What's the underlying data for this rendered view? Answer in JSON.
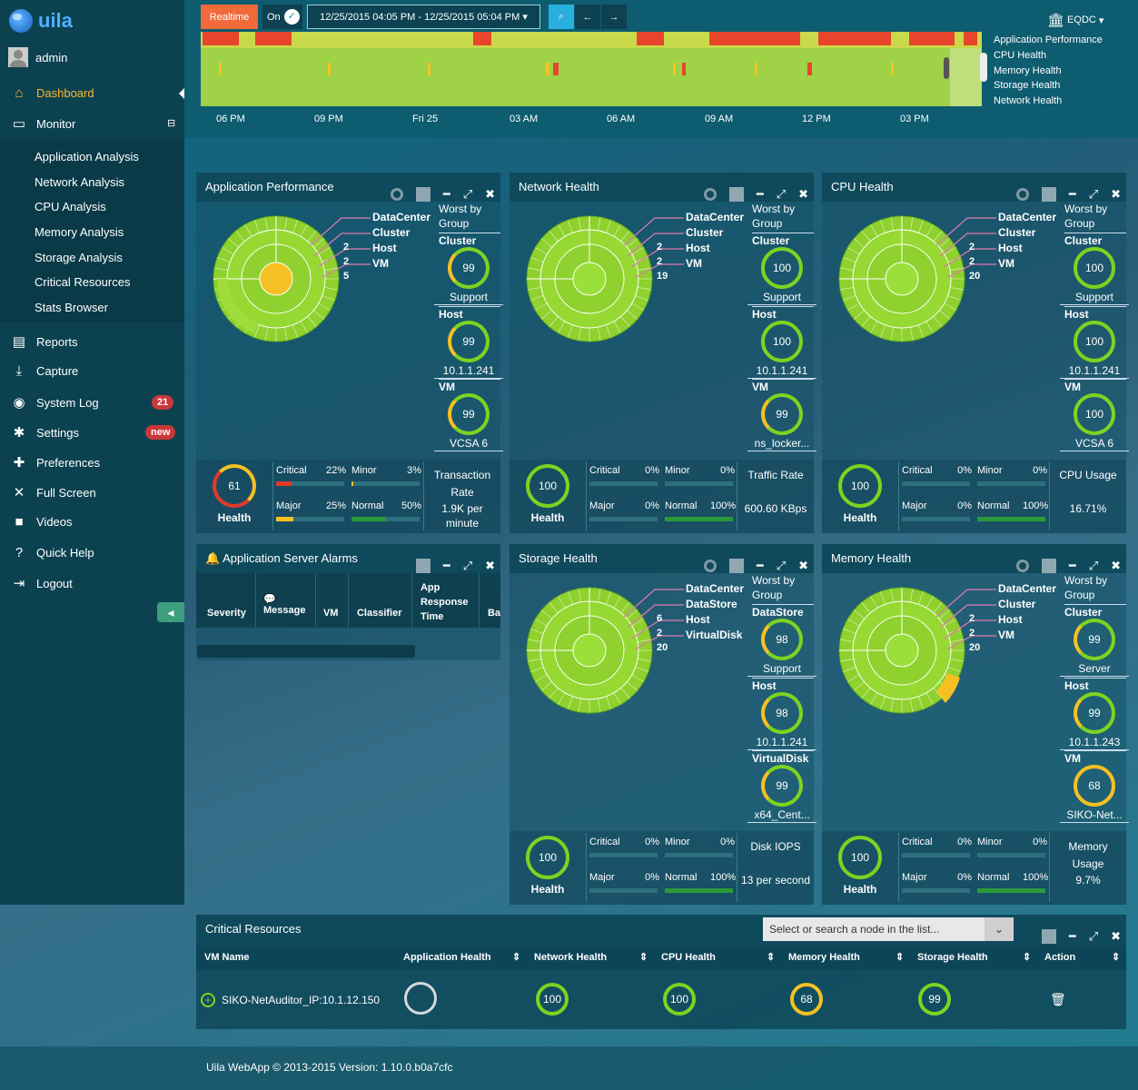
{
  "brand": {
    "name": "uila"
  },
  "user": {
    "name": "admin"
  },
  "nav": {
    "dashboard": "Dashboard",
    "monitor": "Monitor",
    "sub": [
      "Application Analysis",
      "Network Analysis",
      "CPU Analysis",
      "Memory Analysis",
      "Storage Analysis",
      "Critical Resources",
      "Stats Browser"
    ],
    "reports": "Reports",
    "capture": "Capture",
    "syslog": "System Log",
    "syslog_badge": "21",
    "settings": "Settings",
    "settings_badge": "new",
    "preferences": "Preferences",
    "fullscreen": "Full Screen",
    "videos": "Videos",
    "help": "Quick Help",
    "logout": "Logout"
  },
  "toolbar": {
    "realtime": "Realtime",
    "toggle": "On",
    "range": "12/25/2015 04:05 PM - 12/25/2015 05:04 PM",
    "dc": "EQDC"
  },
  "legend": [
    "Application Performance",
    "CPU Health",
    "Memory Health",
    "Storage Health",
    "Network Health"
  ],
  "ticks": [
    "06 PM",
    "09 PM",
    "Fri 25",
    "03 AM",
    "06 AM",
    "09 AM",
    "12 PM",
    "03 PM"
  ],
  "panels": {
    "app": {
      "title": "Application Performance",
      "levels": [
        "DataCenter",
        "Cluster",
        "Host",
        "VM"
      ],
      "nums": [
        "2",
        "2",
        "5"
      ],
      "worst_title": "Worst by Group",
      "w": [
        {
          "grp": "Cluster",
          "val": "99",
          "name": "Support"
        },
        {
          "grp": "Host",
          "val": "99",
          "name": "10.1.1.241"
        },
        {
          "grp": "VM",
          "val": "99",
          "name": "VCSA 6"
        }
      ],
      "health": "61",
      "health_label": "Health",
      "critical": "Critical",
      "critical_pct": "22%",
      "minor": "Minor",
      "minor_pct": "3%",
      "major": "Major",
      "major_pct": "25%",
      "normal": "Normal",
      "normal_pct": "50%",
      "metric_label": "Transaction Rate",
      "metric_val": "1.9K per minute"
    },
    "net": {
      "title": "Network Health",
      "levels": [
        "DataCenter",
        "Cluster",
        "Host",
        "VM"
      ],
      "nums": [
        "2",
        "2",
        "19"
      ],
      "worst_title": "Worst by Group",
      "w": [
        {
          "grp": "Cluster",
          "val": "100",
          "name": "Support"
        },
        {
          "grp": "Host",
          "val": "100",
          "name": "10.1.1.241"
        },
        {
          "grp": "VM",
          "val": "99",
          "name": "ns_locker..."
        }
      ],
      "health": "100",
      "health_label": "Health",
      "critical": "Critical",
      "critical_pct": "0%",
      "minor": "Minor",
      "minor_pct": "0%",
      "major": "Major",
      "major_pct": "0%",
      "normal": "Normal",
      "normal_pct": "100%",
      "metric_label": "Traffic Rate",
      "metric_val": "600.60 KBps"
    },
    "cpu": {
      "title": "CPU Health",
      "levels": [
        "DataCenter",
        "Cluster",
        "Host",
        "VM"
      ],
      "nums": [
        "2",
        "2",
        "20"
      ],
      "worst_title": "Worst by Group",
      "w": [
        {
          "grp": "Cluster",
          "val": "100",
          "name": "Support"
        },
        {
          "grp": "Host",
          "val": "100",
          "name": "10.1.1.241"
        },
        {
          "grp": "VM",
          "val": "100",
          "name": "VCSA 6"
        }
      ],
      "health": "100",
      "health_label": "Health",
      "critical": "Critical",
      "critical_pct": "0%",
      "minor": "Minor",
      "minor_pct": "0%",
      "major": "Major",
      "major_pct": "0%",
      "normal": "Normal",
      "normal_pct": "100%",
      "metric_label": "CPU Usage",
      "metric_val": "16.71%"
    },
    "storage": {
      "title": "Storage Health",
      "levels": [
        "DataCenter",
        "DataStore",
        "Host",
        "VirtualDisk"
      ],
      "nums": [
        "6",
        "2",
        "20"
      ],
      "worst_title": "Worst by Group",
      "w": [
        {
          "grp": "DataStore",
          "val": "98",
          "name": "Support"
        },
        {
          "grp": "Host",
          "val": "98",
          "name": "10.1.1.241"
        },
        {
          "grp": "VirtualDisk",
          "val": "99",
          "name": "x64_Cent..."
        }
      ],
      "health": "100",
      "health_label": "Health",
      "critical": "Critical",
      "critical_pct": "0%",
      "minor": "Minor",
      "minor_pct": "0%",
      "major": "Major",
      "major_pct": "0%",
      "normal": "Normal",
      "normal_pct": "100%",
      "metric_label": "Disk IOPS",
      "metric_val": "13 per second"
    },
    "mem": {
      "title": "Memory Health",
      "levels": [
        "DataCenter",
        "Cluster",
        "Host",
        "VM"
      ],
      "nums": [
        "2",
        "2",
        "20"
      ],
      "worst_title": "Worst by Group",
      "w": [
        {
          "grp": "Cluster",
          "val": "99",
          "name": "Server"
        },
        {
          "grp": "Host",
          "val": "99",
          "name": "10.1.1.243"
        },
        {
          "grp": "VM",
          "val": "68",
          "name": "SIKO-Net..."
        }
      ],
      "health": "100",
      "health_label": "Health",
      "critical": "Critical",
      "critical_pct": "0%",
      "minor": "Minor",
      "minor_pct": "0%",
      "major": "Major",
      "major_pct": "0%",
      "normal": "Normal",
      "normal_pct": "100%",
      "metric_label": "Memory Usage",
      "metric_val": "9.7%"
    }
  },
  "alarms": {
    "title": "Application Server Alarms",
    "cols": [
      "Severity",
      "Message",
      "VM",
      "Classifier",
      "App Response Time",
      "Ba"
    ]
  },
  "critical": {
    "title": "Critical Resources",
    "placeholder": "Select or search a node in the list...",
    "cols": [
      "VM Name",
      "Application Health",
      "Network Health",
      "CPU Health",
      "Memory Health",
      "Storage Health",
      "Action"
    ],
    "row": {
      "name": "SIKO-NetAuditor_IP:10.1.12.150",
      "net": "100",
      "cpu": "100",
      "mem": "68",
      "sto": "99"
    }
  },
  "footer": "Uila WebApp © 2013-2015 Version: 1.10.0.b0a7cfc",
  "colors": {
    "green": "#7dd320",
    "yellow": "#f5c023",
    "red": "#e03a2a",
    "accent": "#f06a3a"
  }
}
